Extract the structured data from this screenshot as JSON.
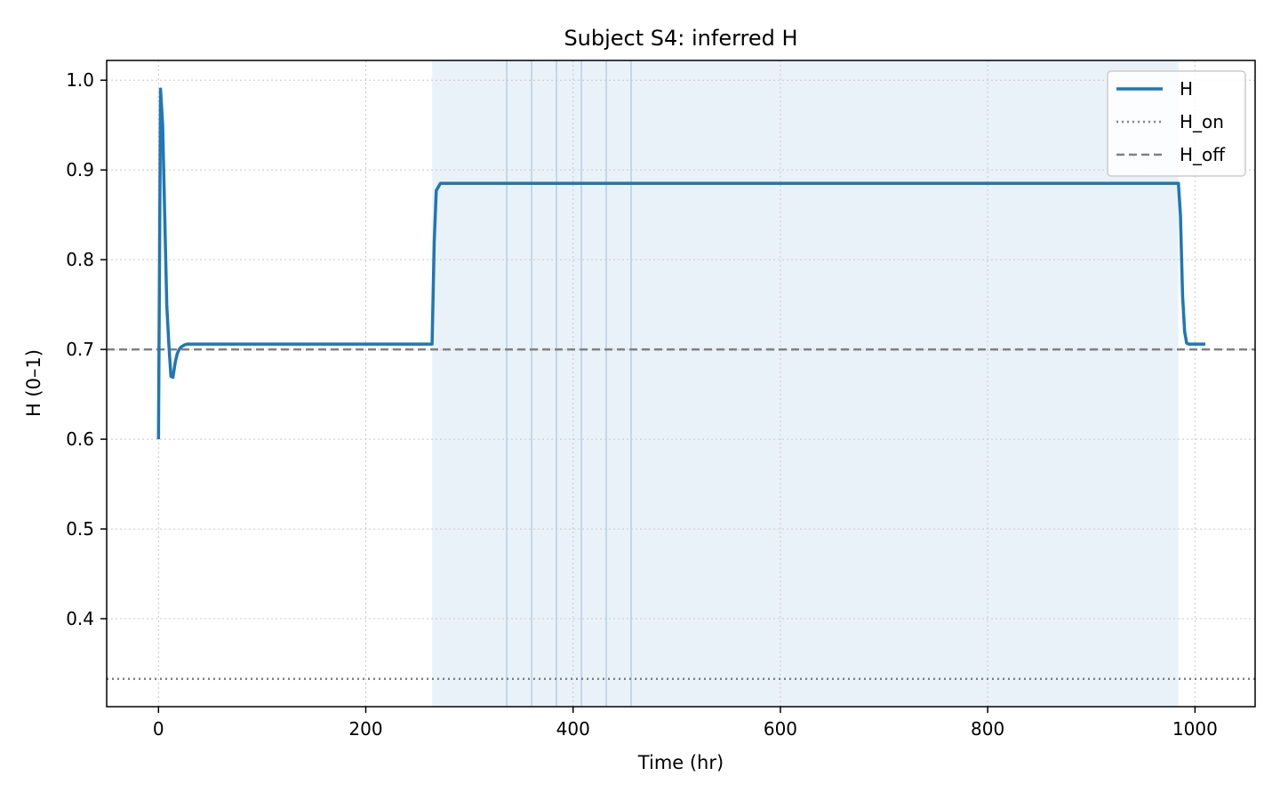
{
  "chart_data": {
    "type": "line",
    "title": "Subject S4: inferred H",
    "xlabel": "Time (hr)",
    "ylabel": "H (0–1)",
    "xlim": [
      -50,
      1058
    ],
    "ylim": [
      0.302,
      1.022
    ],
    "xticks": [
      0,
      200,
      400,
      600,
      800,
      1000
    ],
    "yticks": [
      0.4,
      0.5,
      0.6,
      0.7,
      0.8,
      0.9,
      1.0
    ],
    "xtick_labels": [
      "0",
      "200",
      "400",
      "600",
      "800",
      "1000"
    ],
    "ytick_labels": [
      "0.4",
      "0.5",
      "0.6",
      "0.7",
      "0.8",
      "0.9",
      "1.0"
    ],
    "grid": true,
    "legend_position": "top-right",
    "colors": {
      "H": "#1f77b4",
      "reference": "#808080",
      "shade": "#dce9f5",
      "event_line": "#b7cfe3"
    },
    "shaded_region": {
      "x0": 264,
      "x1": 984
    },
    "event_lines": [
      336,
      360,
      384,
      408,
      432,
      456
    ],
    "series": [
      {
        "name": "H",
        "style": "solid",
        "x": [
          0,
          2,
          4,
          6,
          8,
          10,
          12,
          14,
          16,
          18,
          20,
          22,
          25,
          28,
          32,
          40,
          60,
          100,
          150,
          200,
          260,
          264,
          266,
          268,
          272,
          280,
          300,
          400,
          500,
          600,
          700,
          800,
          900,
          984,
          986,
          988,
          990,
          992,
          994,
          1000,
          1010
        ],
        "y": [
          0.6,
          0.99,
          0.95,
          0.85,
          0.75,
          0.705,
          0.67,
          0.669,
          0.685,
          0.695,
          0.7,
          0.703,
          0.705,
          0.706,
          0.706,
          0.706,
          0.706,
          0.706,
          0.706,
          0.706,
          0.706,
          0.706,
          0.82,
          0.877,
          0.885,
          0.885,
          0.885,
          0.885,
          0.885,
          0.885,
          0.885,
          0.885,
          0.885,
          0.885,
          0.85,
          0.76,
          0.72,
          0.707,
          0.706,
          0.706,
          0.706
        ]
      },
      {
        "name": "H_on",
        "style": "dotted",
        "y_const": 0.333
      },
      {
        "name": "H_off",
        "style": "dashed",
        "y_const": 0.7
      }
    ]
  }
}
